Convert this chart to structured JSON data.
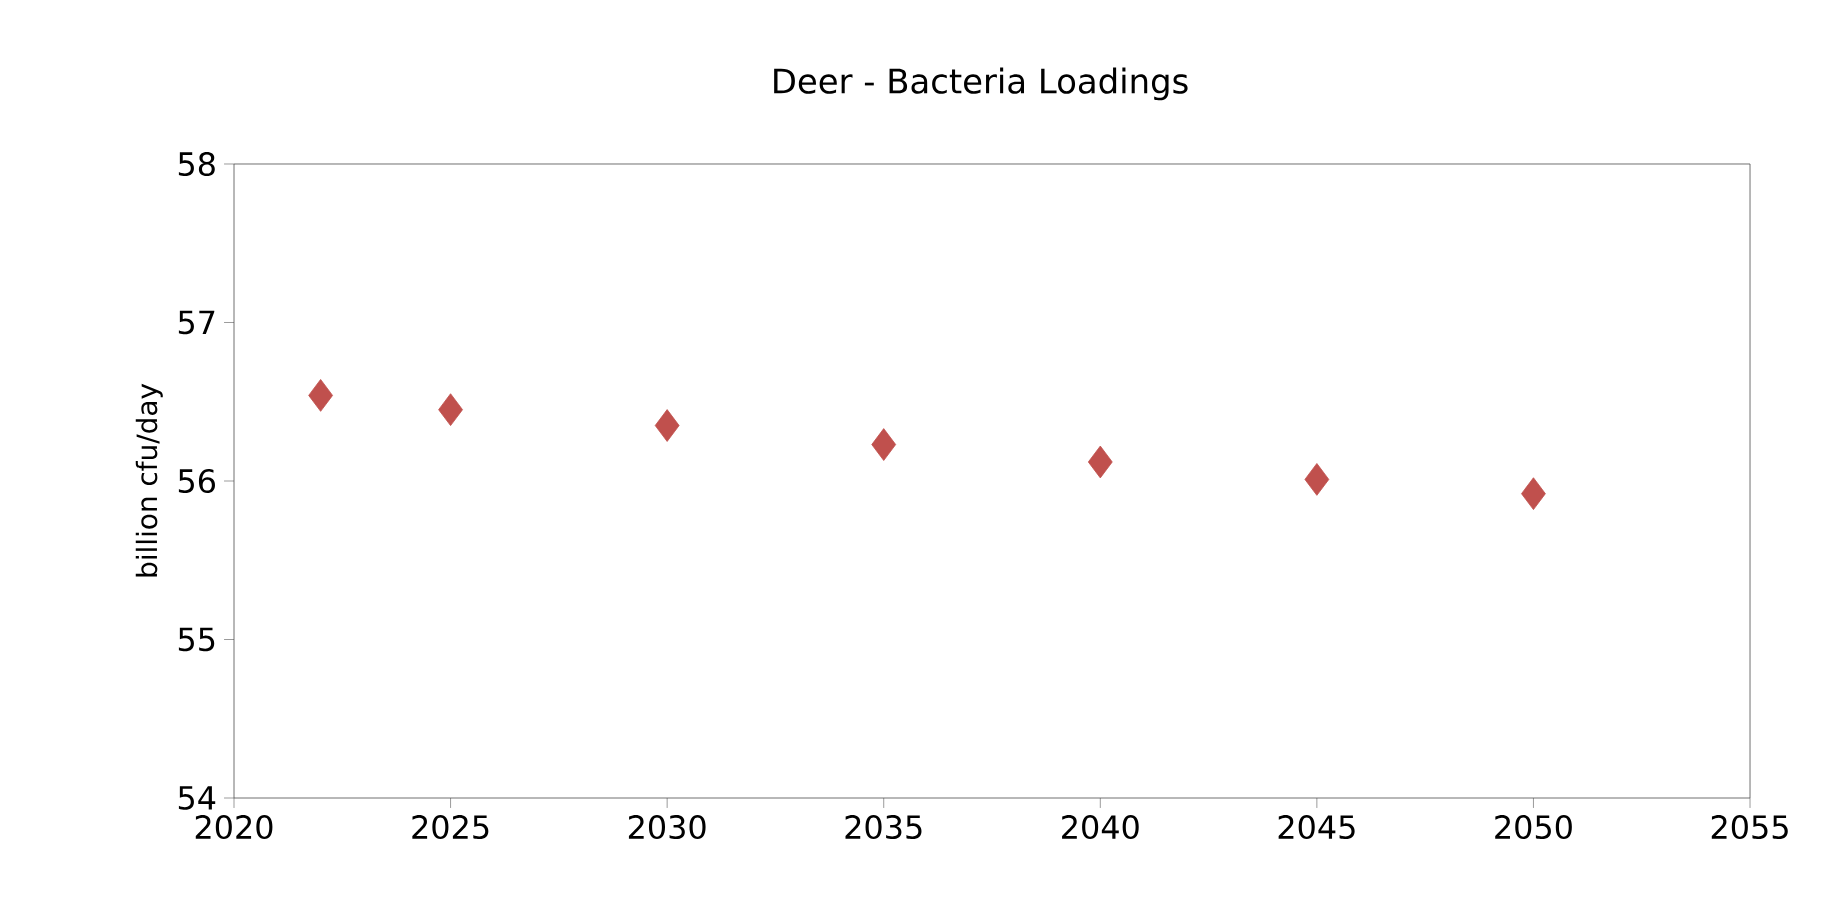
{
  "chart_data": {
    "type": "scatter",
    "title": "Deer - Bacteria Loadings",
    "ylabel": "billion cfu/day",
    "x": [
      2022,
      2025,
      2030,
      2035,
      2040,
      2045,
      2050
    ],
    "series": [
      {
        "color": "#c0504d",
        "values": [
          56.54,
          56.45,
          56.35,
          56.23,
          56.12,
          56.01,
          55.92
        ]
      }
    ],
    "xlim": [
      2020,
      2055
    ],
    "xticks": [
      2020,
      2025,
      2030,
      2035,
      2040,
      2045,
      2050,
      2055
    ],
    "ylim": [
      54,
      58
    ],
    "yticks": [
      54,
      55,
      56,
      57,
      58
    ],
    "grid": false,
    "marker": "diamond"
  }
}
